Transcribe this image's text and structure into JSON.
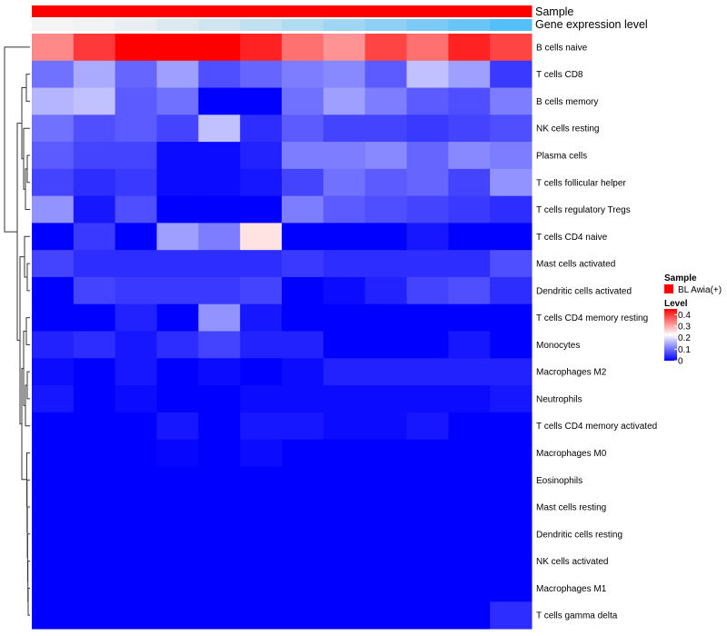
{
  "chart_data": {
    "type": "heatmap",
    "rows": [
      "B cells naive",
      "T cells CD8",
      "B cells memory",
      "NK cells resting",
      "Plasma cells",
      "T cells follicular helper",
      "T cells regulatory  Tregs",
      "T cells CD4 naive",
      "Mast cells activated",
      "Dendritic cells activated",
      "T cells CD4 memory resting",
      "Monocytes",
      "Macrophages M2",
      "Neutrophils",
      "T cells CD4 memory activated",
      "Macrophages M0",
      "Eosinophils",
      "Mast cells resting",
      "Dendritic cells resting",
      "NK cells activated",
      "Macrophages M1",
      "T cells gamma delta"
    ],
    "values": [
      [
        0.33,
        0.4,
        0.45,
        0.45,
        0.45,
        0.42,
        0.35,
        0.32,
        0.39,
        0.35,
        0.42,
        0.39
      ],
      [
        0.1,
        0.15,
        0.09,
        0.14,
        0.07,
        0.09,
        0.11,
        0.12,
        0.08,
        0.17,
        0.14,
        0.05
      ],
      [
        0.16,
        0.17,
        0.08,
        0.1,
        0.0,
        0.0,
        0.1,
        0.14,
        0.11,
        0.08,
        0.07,
        0.11
      ],
      [
        0.1,
        0.07,
        0.08,
        0.06,
        0.17,
        0.04,
        0.08,
        0.06,
        0.06,
        0.05,
        0.06,
        0.07
      ],
      [
        0.08,
        0.06,
        0.06,
        0.01,
        0.01,
        0.03,
        0.11,
        0.11,
        0.12,
        0.09,
        0.12,
        0.11
      ],
      [
        0.06,
        0.04,
        0.05,
        0.01,
        0.01,
        0.02,
        0.06,
        0.1,
        0.08,
        0.09,
        0.06,
        0.13
      ],
      [
        0.13,
        0.02,
        0.07,
        0.0,
        0.0,
        0.0,
        0.11,
        0.08,
        0.07,
        0.06,
        0.05,
        0.04
      ],
      [
        0.0,
        0.05,
        0.0,
        0.14,
        0.11,
        0.25,
        0.0,
        0.0,
        0.0,
        0.02,
        0.0,
        0.0
      ],
      [
        0.06,
        0.04,
        0.04,
        0.04,
        0.04,
        0.04,
        0.05,
        0.04,
        0.04,
        0.04,
        0.04,
        0.07
      ],
      [
        0.0,
        0.06,
        0.05,
        0.05,
        0.05,
        0.06,
        0.0,
        0.01,
        0.03,
        0.06,
        0.07,
        0.04
      ],
      [
        0.0,
        0.0,
        0.03,
        0.0,
        0.13,
        0.02,
        0.0,
        0.0,
        0.0,
        0.0,
        0.0,
        0.0
      ],
      [
        0.03,
        0.04,
        0.02,
        0.04,
        0.06,
        0.03,
        0.03,
        0.0,
        0.0,
        0.0,
        0.02,
        0.0
      ],
      [
        0.01,
        0.0,
        0.02,
        0.0,
        0.01,
        0.0,
        0.01,
        0.03,
        0.03,
        0.03,
        0.03,
        0.03
      ],
      [
        0.02,
        0.0,
        0.01,
        0.0,
        0.0,
        0.01,
        0.01,
        0.01,
        0.01,
        0.01,
        0.01,
        0.02
      ],
      [
        0.0,
        0.0,
        0.0,
        0.02,
        0.0,
        0.02,
        0.02,
        0.01,
        0.01,
        0.02,
        0.0,
        0.0
      ],
      [
        0.0,
        0.0,
        0.0,
        0.005,
        0.0,
        0.01,
        0.0,
        0.0,
        0.0,
        0.0,
        0.0,
        0.0
      ],
      [
        0.0,
        0.0,
        0.0,
        0.0,
        0.0,
        0.0,
        0.0,
        0.0,
        0.0,
        0.0,
        0.0,
        0.0
      ],
      [
        0.0,
        0.0,
        0.0,
        0.0,
        0.0,
        0.0,
        0.0,
        0.0,
        0.0,
        0.0,
        0.0,
        0.0
      ],
      [
        0.0,
        0.0,
        0.0,
        0.0,
        0.0,
        0.0,
        0.0,
        0.0,
        0.0,
        0.0,
        0.0,
        0.0
      ],
      [
        0.0,
        0.0,
        0.0,
        0.0,
        0.0,
        0.0,
        0.0,
        0.0,
        0.0,
        0.0,
        0.0,
        0.0
      ],
      [
        0.0,
        0.0,
        0.0,
        0.0,
        0.0,
        0.0,
        0.0,
        0.0,
        0.0,
        0.0,
        0.0,
        0.0
      ],
      [
        0.0,
        0.0,
        0.0,
        0.0,
        0.0,
        0.0,
        0.0,
        0.0,
        0.0,
        0.0,
        0.0,
        0.04
      ]
    ],
    "column_annotations": [
      {
        "name": "Sample",
        "colors": [
          "#ff0000",
          "#ff0000",
          "#ff0000",
          "#ff0000",
          "#ff0000",
          "#ff0000",
          "#ff0000",
          "#ff0000",
          "#ff0000",
          "#ff0000",
          "#ff0000",
          "#ff0000"
        ]
      },
      {
        "name": "Gene expression level",
        "colors": [
          "#f4f4f4",
          "#f0f2f4",
          "#e8eef2",
          "#dbe9f1",
          "#cfe6f1",
          "#c0e1f1",
          "#b0dcf2",
          "#9fd6f3",
          "#8dd0f4",
          "#7acaf5",
          "#68c5f6",
          "#55bff8"
        ]
      }
    ],
    "legend": {
      "sample_title": "Sample",
      "sample_items": [
        {
          "label": "BL Awia(+)",
          "color": "#ff0000"
        }
      ],
      "level_title": "Level",
      "level_ticks": [
        "0.4",
        "0.3",
        "0.2",
        "0.1",
        "0"
      ],
      "level_tick_values": [
        0.4,
        0.3,
        0.2,
        0.1,
        0
      ],
      "placement": "right"
    },
    "color_scale": {
      "low": "#0000ff",
      "mid": "#ffffff",
      "high": "#ff0000",
      "min": 0,
      "mid_value": 0.225,
      "max": 0.45
    },
    "row_dendrogram": true,
    "grid": false
  }
}
